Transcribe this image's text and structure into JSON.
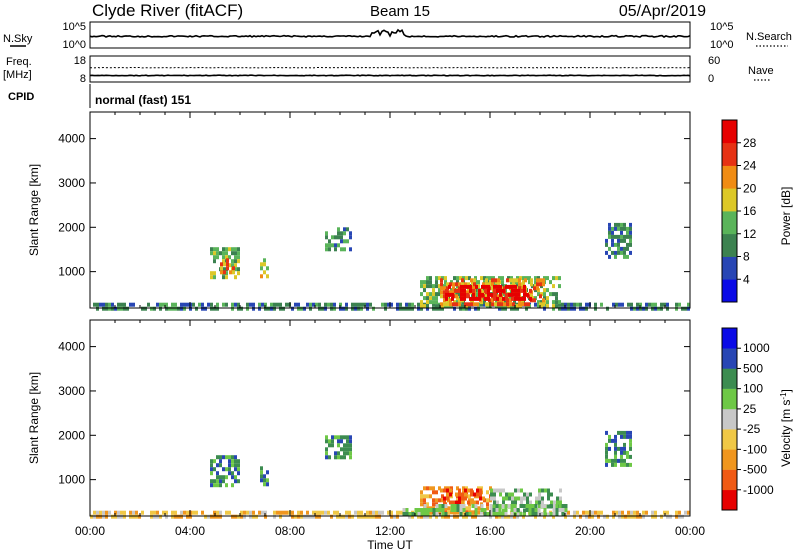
{
  "header": {
    "station": "Clyde River (fitACF)",
    "beam": "Beam 15",
    "date": "05/Apr/2019"
  },
  "top_panels": {
    "nsky_label": "N.Sky",
    "nsearch_label": "N.Search",
    "noise_left_ticks": [
      "10^5",
      "10^0"
    ],
    "noise_right_ticks": [
      "10^5",
      "10^0"
    ],
    "freq_label": "Freq.",
    "freq_unit": "[MHz]",
    "freq_ticks": [
      "18",
      "8"
    ],
    "nave_label": "Nave",
    "nave_ticks": [
      "60",
      "0"
    ],
    "cpid_label": "CPID",
    "cpid_value": "normal (fast) 151",
    "noise_trace_level": 0.45,
    "freq_trace_level": 0.25,
    "nave_trace_level": 0.55
  },
  "chart_data": [
    {
      "type": "heatmap",
      "title": "",
      "xlabel": "Time UT",
      "ylabel": "Slant Range [km]",
      "x_ticks": [
        "00:00",
        "04:00",
        "08:00",
        "12:00",
        "16:00",
        "20:00",
        "00:00"
      ],
      "xlim_hours": [
        0,
        24
      ],
      "y_ticks": [
        1000,
        2000,
        3000,
        4000
      ],
      "ylim": [
        180,
        4600
      ],
      "colorbar": {
        "label": "Power [dB]",
        "ticks": [
          "4",
          "8",
          "12",
          "16",
          "20",
          "24",
          "28"
        ],
        "colors": [
          "#0a0ae6",
          "#2846b4",
          "#3c8250",
          "#5ab45a",
          "#dcc828",
          "#f08c14",
          "#e63214",
          "#e60000"
        ]
      },
      "regions": [
        {
          "t0": 0.0,
          "t1": 24.0,
          "r0": 180,
          "r1": 300,
          "level": 2
        },
        {
          "t0": 4.8,
          "t1": 6.0,
          "r0": 900,
          "r1": 1550,
          "level": 3
        },
        {
          "t0": 5.2,
          "t1": 5.8,
          "r0": 1000,
          "r1": 1300,
          "level": 5
        },
        {
          "t0": 6.8,
          "t1": 7.1,
          "r0": 900,
          "r1": 1300,
          "level": 4
        },
        {
          "t0": 9.4,
          "t1": 10.4,
          "r0": 1500,
          "r1": 2000,
          "level": 2
        },
        {
          "t0": 13.2,
          "t1": 18.8,
          "r0": 180,
          "r1": 900,
          "level": 3
        },
        {
          "t0": 14.0,
          "t1": 18.2,
          "r0": 300,
          "r1": 850,
          "level": 5
        },
        {
          "t0": 14.2,
          "t1": 17.6,
          "r0": 400,
          "r1": 700,
          "level": 7
        },
        {
          "t0": 20.6,
          "t1": 21.6,
          "r0": 1300,
          "r1": 2100,
          "level": 2
        }
      ]
    },
    {
      "type": "heatmap",
      "title": "",
      "xlabel": "Time UT",
      "ylabel": "Slant Range [km]",
      "x_ticks": [
        "00:00",
        "04:00",
        "08:00",
        "12:00",
        "16:00",
        "20:00",
        "00:00"
      ],
      "xlim_hours": [
        0,
        24
      ],
      "y_ticks": [
        1000,
        2000,
        3000,
        4000
      ],
      "ylim": [
        180,
        4600
      ],
      "colorbar": {
        "label": "Velocity [m s",
        "label_superscript": "-1",
        "label_close": "]",
        "ticks": [
          "-1000",
          "-500",
          "-100",
          "-25",
          "25",
          "100",
          "500",
          "1000"
        ],
        "colors": [
          "#e60000",
          "#f05a14",
          "#f0961e",
          "#f0c846",
          "#c8c8c8",
          "#6ec846",
          "#3c8c50",
          "#2846b4",
          "#0a0ae6"
        ]
      },
      "regions": [
        {
          "t0": 0.0,
          "t1": 24.0,
          "r0": 180,
          "r1": 300,
          "level": 3
        },
        {
          "t0": 4.8,
          "t1": 6.0,
          "r0": 900,
          "r1": 1550,
          "level": 6
        },
        {
          "t0": 6.8,
          "t1": 7.1,
          "r0": 900,
          "r1": 1300,
          "level": 6
        },
        {
          "t0": 9.4,
          "t1": 10.4,
          "r0": 1500,
          "r1": 2000,
          "level": 6
        },
        {
          "t0": 13.2,
          "t1": 16.0,
          "r0": 300,
          "r1": 850,
          "level": 2
        },
        {
          "t0": 14.0,
          "t1": 15.8,
          "r0": 450,
          "r1": 800,
          "level": 1
        },
        {
          "t0": 16.0,
          "t1": 18.8,
          "r0": 180,
          "r1": 800,
          "level": 5
        },
        {
          "t0": 12.5,
          "t1": 19.0,
          "r0": 180,
          "r1": 450,
          "level": 5
        },
        {
          "t0": 20.6,
          "t1": 21.6,
          "r0": 1300,
          "r1": 2100,
          "level": 6
        }
      ]
    }
  ]
}
